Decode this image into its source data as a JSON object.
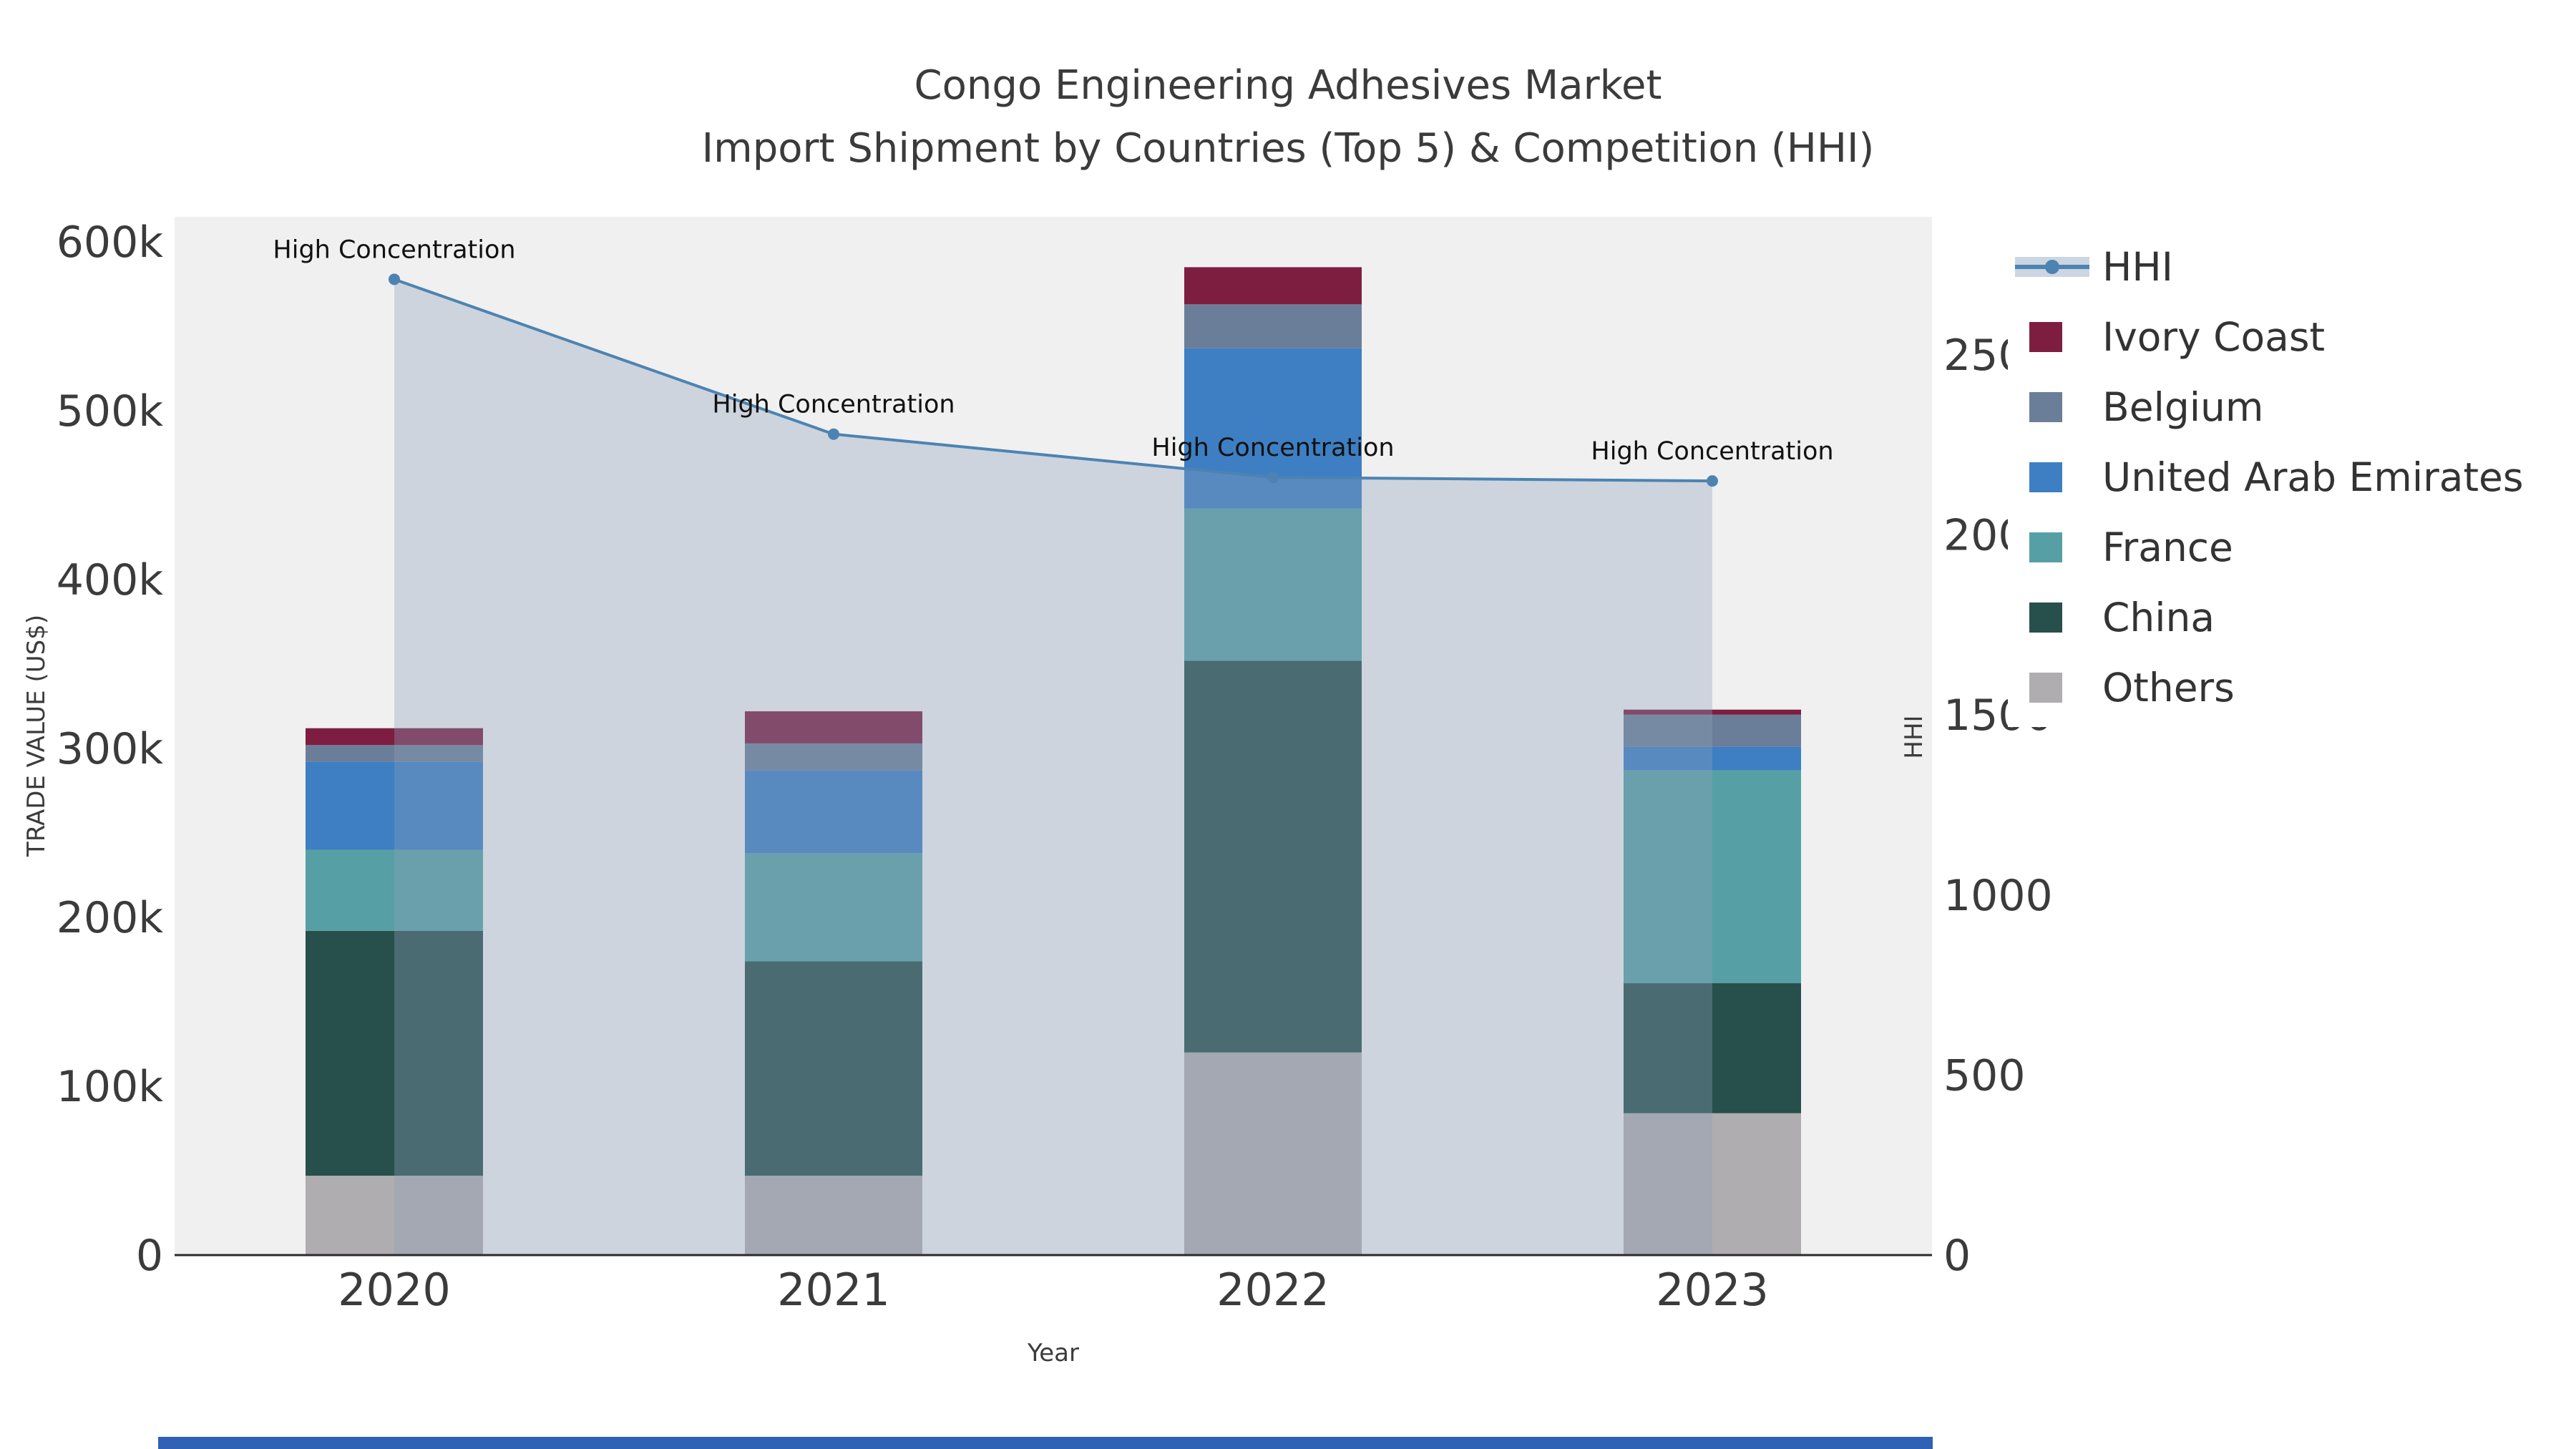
{
  "title": {
    "line1": "Congo Engineering Adhesives Market",
    "line2": "Import Shipment by Countries (Top 5) & Competition (HHI)"
  },
  "chart_data": {
    "type": "bar",
    "subtype": "stacked-bars-with-line-overlay-and-area",
    "title_lines": [
      "Congo Engineering Adhesives Market",
      "Import Shipment by Countries (Top 5) & Competition (HHI)"
    ],
    "categories": [
      "2020",
      "2021",
      "2022",
      "2023"
    ],
    "series": [
      {
        "name": "Others",
        "color": "#afadaf",
        "values": [
          47000,
          47000,
          120000,
          84000
        ]
      },
      {
        "name": "China",
        "color": "#274f4c",
        "values": [
          145000,
          127000,
          232000,
          77000
        ]
      },
      {
        "name": "France",
        "color": "#56a0a5",
        "values": [
          48000,
          64000,
          90000,
          126000
        ]
      },
      {
        "name": "United Arab Emirates",
        "color": "#3d7fc2",
        "values": [
          52000,
          49000,
          95000,
          14000
        ]
      },
      {
        "name": "Belgium",
        "color": "#6b7e99",
        "values": [
          10000,
          16000,
          26000,
          19000
        ]
      },
      {
        "name": "Ivory Coast",
        "color": "#7d1e41",
        "values": [
          10000,
          19000,
          22000,
          3000
        ]
      }
    ],
    "line": {
      "name": "HHI",
      "axis": "right",
      "values": [
        2710,
        2280,
        2160,
        2150
      ],
      "color": "#4d83b2",
      "area_fill": "#8ca0ba",
      "area_opacity": 0.35,
      "annotations": [
        "High Concentration",
        "High Concentration",
        "High Concentration",
        "High Concentration"
      ]
    },
    "y_left": {
      "title": "TRADE VALUE (US$)",
      "ticks": [
        "0",
        "100k",
        "200k",
        "300k",
        "400k",
        "500k",
        "600k"
      ],
      "tick_values": [
        0,
        100000,
        200000,
        300000,
        400000,
        500000,
        600000
      ],
      "range": [
        0,
        615000
      ]
    },
    "y_right": {
      "title": "HHI",
      "ticks": [
        "0",
        "500",
        "1000",
        "1500",
        "2000",
        "2500"
      ],
      "tick_values": [
        0,
        500,
        1000,
        1500,
        2000,
        2500
      ],
      "range": [
        0,
        2880
      ]
    },
    "x": {
      "title": "Year"
    },
    "plot_bg": "#f0f0f0",
    "legend_position": "right",
    "grid": false,
    "legend": [
      {
        "label": "HHI",
        "type": "line",
        "color": "#4d83b2",
        "patch": "#ccd6e2"
      },
      {
        "label": "Ivory Coast",
        "type": "swatch",
        "color": "#7d1e41"
      },
      {
        "label": "Belgium",
        "type": "swatch",
        "color": "#6b7e99"
      },
      {
        "label": "United Arab Emirates",
        "type": "swatch",
        "color": "#3d7fc2"
      },
      {
        "label": "France",
        "type": "swatch",
        "color": "#56a0a5"
      },
      {
        "label": "China",
        "type": "swatch",
        "color": "#274f4c"
      },
      {
        "label": "Others",
        "type": "swatch",
        "color": "#afadaf"
      }
    ]
  },
  "ui": {
    "text_color": "#3b3b3b",
    "annotation_color": "#111111",
    "axis_line_color": "#2b2b2b",
    "bottom_strip_color": "#2f62b5"
  }
}
